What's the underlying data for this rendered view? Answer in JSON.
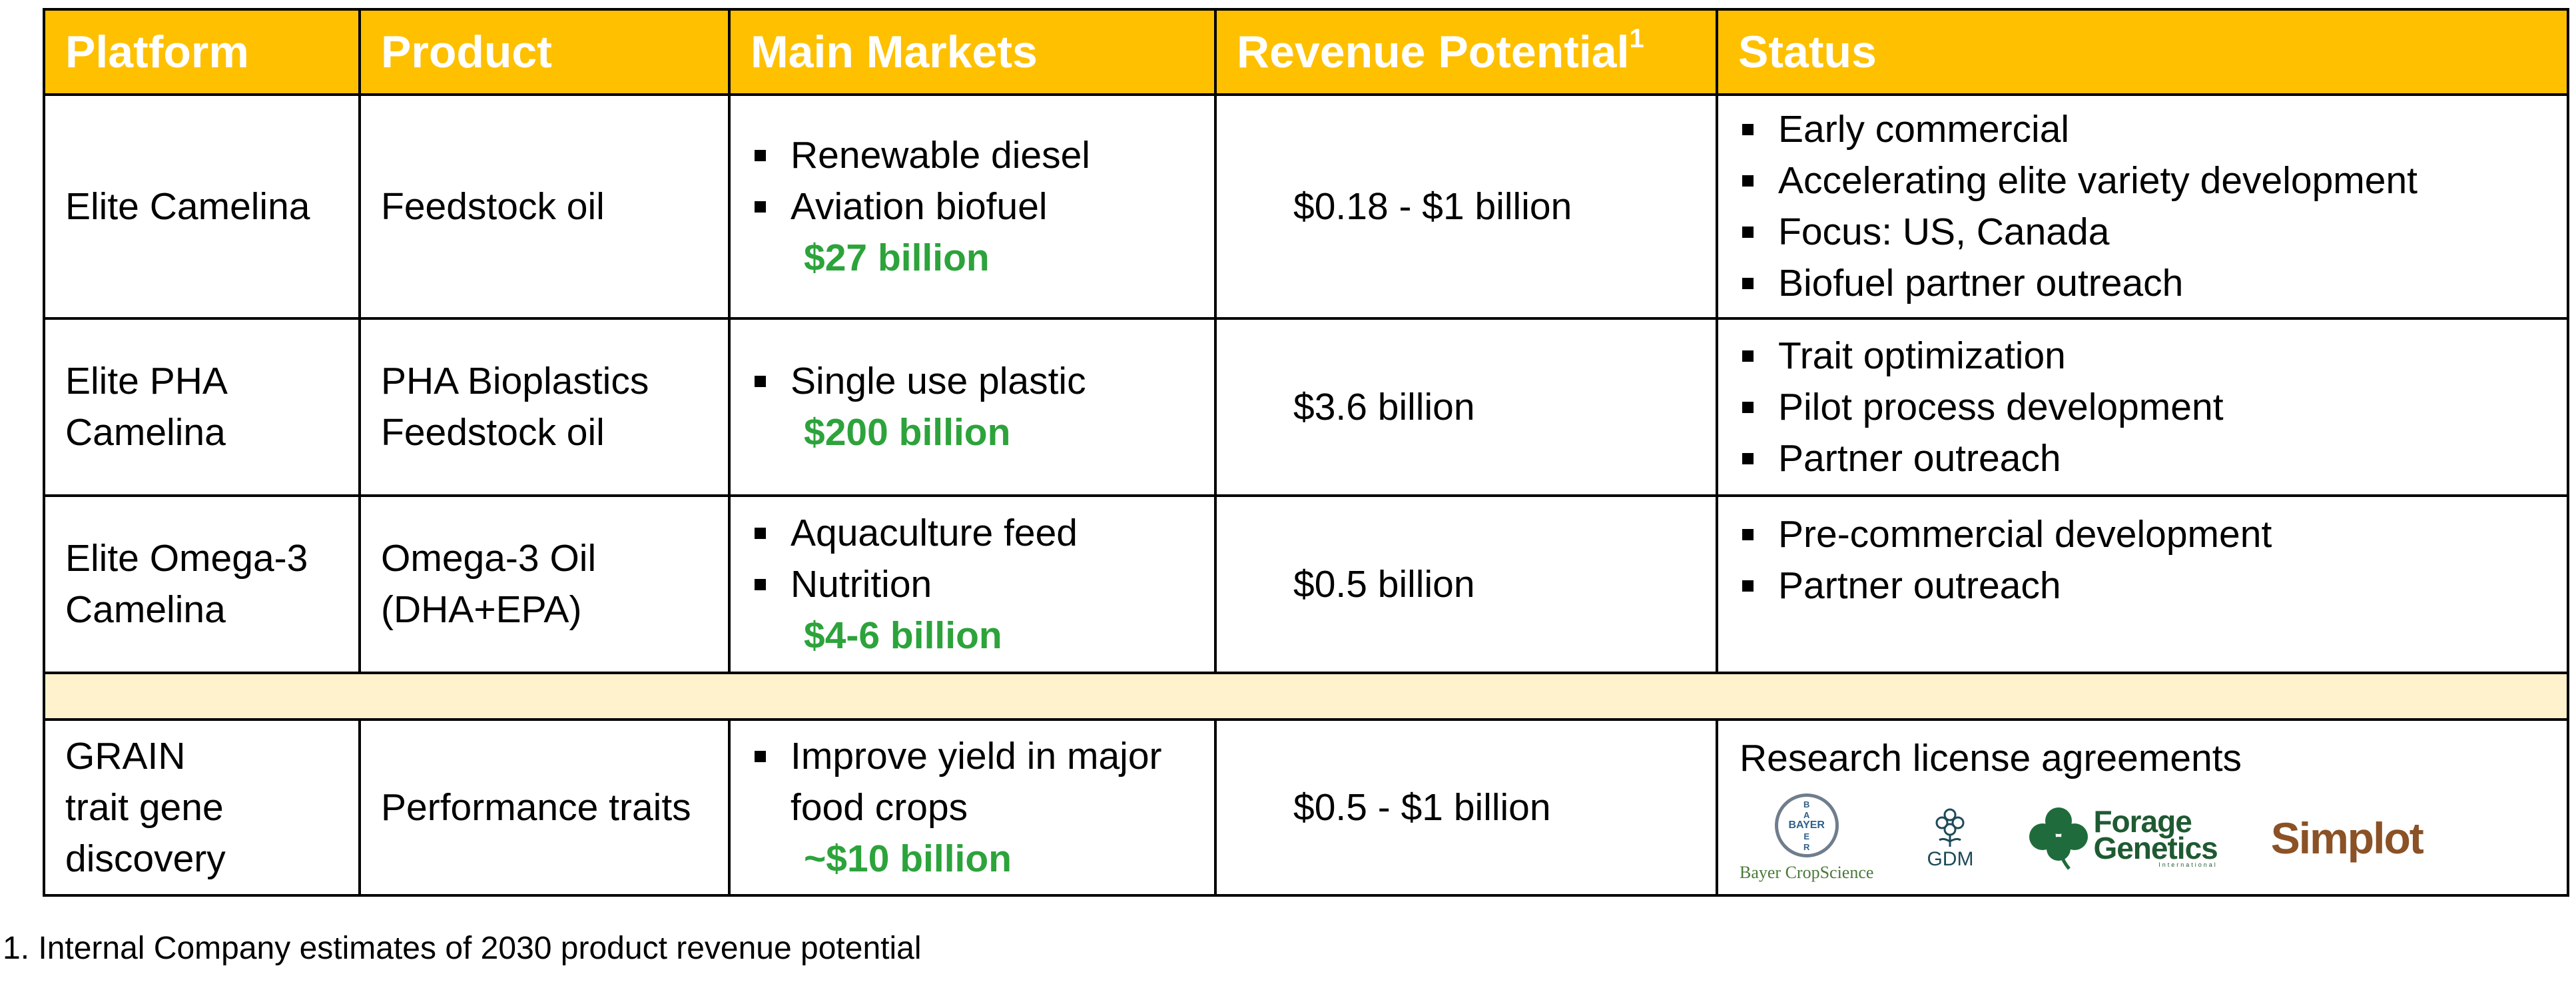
{
  "headers": {
    "platform": "Platform",
    "product": "Product",
    "main_markets": "Main Markets",
    "revenue_potential": "Revenue Potential",
    "revenue_superscript": "1",
    "status": "Status"
  },
  "rows": [
    {
      "platform": "Elite Camelina",
      "product": "Feedstock oil",
      "markets": [
        "Renewable diesel",
        "Aviation biofuel"
      ],
      "market_size": "$27 billion",
      "revenue": "$0.18 - $1 billion",
      "status": [
        "Early commercial",
        "Accelerating elite variety development",
        "Focus: US, Canada",
        "Biofuel partner outreach"
      ]
    },
    {
      "platform_lines": [
        "Elite PHA",
        "Camelina"
      ],
      "product_lines": [
        "PHA Bioplastics",
        "Feedstock oil"
      ],
      "markets": [
        "Single use plastic"
      ],
      "market_size": "$200 billion",
      "revenue": "$3.6 billion",
      "status": [
        "Trait optimization",
        "Pilot process development",
        "Partner outreach"
      ]
    },
    {
      "platform_lines": [
        "Elite Omega-3",
        "Camelina"
      ],
      "product_lines": [
        "Omega-3 Oil",
        "(DHA+EPA)"
      ],
      "markets": [
        "Aquaculture feed",
        "Nutrition"
      ],
      "market_size": "$4-6 billion",
      "revenue": "$0.5 billion",
      "status": [
        "Pre-commercial development",
        "Partner outreach"
      ]
    }
  ],
  "grain": {
    "platform_lines": [
      "GRAIN",
      "trait gene",
      "discovery"
    ],
    "product": "Performance traits",
    "market_lines": [
      "Improve yield in major",
      "food crops"
    ],
    "market_size": "~$10 billion",
    "revenue": "$0.5 - $1 billion",
    "status_title": "Research  license agreements",
    "logos": {
      "bayer_vertical": "BAYER",
      "bayer_horizontal": "BAYER",
      "bayer_caption": "Bayer CropScience",
      "gdm": "GDM",
      "forage_line1": "Forage",
      "forage_line2": "Genetics",
      "forage_sub": "International",
      "simplot": "Simplot"
    }
  },
  "colors": {
    "header_bg": "#FFC000",
    "spacer_bg": "#FFF2CC",
    "money_green": "#2CA33B"
  },
  "footnote": "1. Internal Company estimates of 2030 product revenue potential"
}
